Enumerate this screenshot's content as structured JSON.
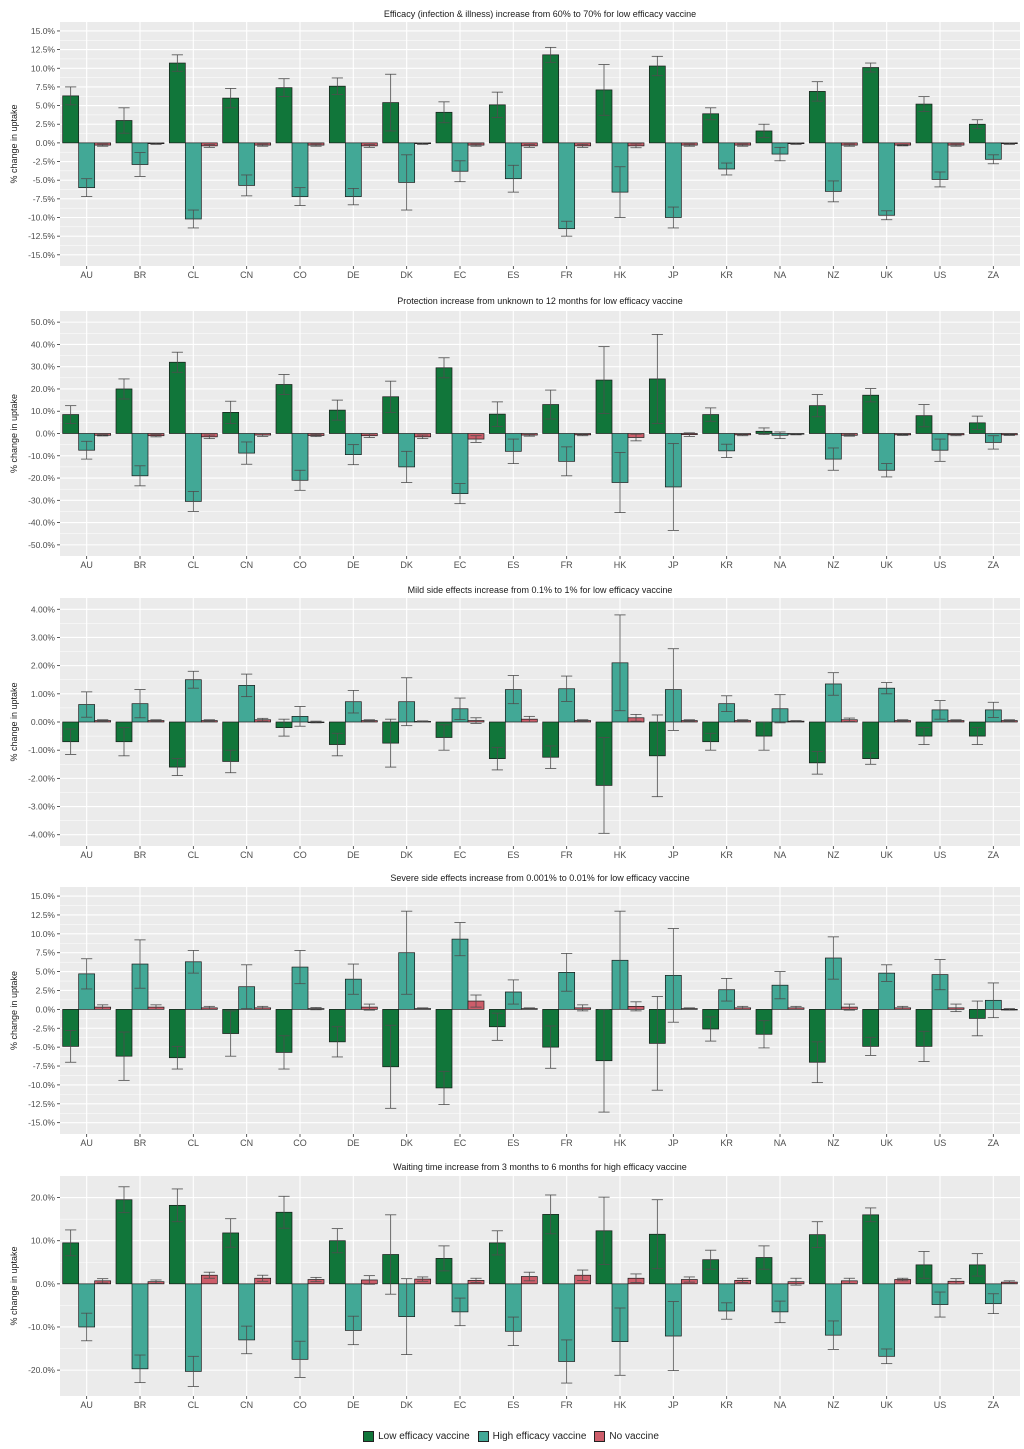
{
  "chart_data": [
    {
      "type": "bar",
      "title": "Efficacy (infection & illness) increase from 60% to 70% for low efficacy vaccine",
      "ylabel": "% change in uptake",
      "ylim": [
        -16.5,
        16.2
      ],
      "ticks": [
        -15,
        -12.5,
        -10,
        -7.5,
        -5,
        -2.5,
        0,
        2.5,
        5,
        7.5,
        10,
        12.5,
        15
      ],
      "tick_labels": [
        "-15.0%",
        "-12.5%",
        "-10.0%",
        "-7.5%",
        "-5.0%",
        "-2.5%",
        "0.0%",
        "2.5%",
        "5.0%",
        "7.5%",
        "10.0%",
        "12.5%",
        "15.0%"
      ],
      "categories": [
        "AU",
        "BR",
        "CL",
        "CN",
        "CO",
        "DE",
        "DK",
        "EC",
        "ES",
        "FR",
        "HK",
        "JP",
        "KR",
        "NA",
        "NZ",
        "UK",
        "US",
        "ZA"
      ],
      "series": [
        {
          "name": "Low efficacy vaccine",
          "values": [
            6.3,
            3.0,
            10.7,
            6.0,
            7.4,
            7.6,
            5.4,
            4.1,
            5.1,
            11.8,
            7.1,
            10.3,
            3.9,
            1.6,
            6.9,
            10.1,
            5.2,
            2.5
          ],
          "err": [
            1.2,
            1.7,
            1.1,
            1.3,
            1.2,
            1.1,
            3.8,
            1.4,
            1.7,
            1.0,
            3.4,
            1.3,
            0.8,
            0.9,
            1.3,
            0.6,
            1.0,
            0.6
          ]
        },
        {
          "name": "High efficacy vaccine",
          "values": [
            -6.0,
            -2.9,
            -10.2,
            -5.7,
            -7.2,
            -7.2,
            -5.3,
            -3.8,
            -4.8,
            -11.5,
            -6.6,
            -10.0,
            -3.5,
            -1.5,
            -6.5,
            -9.7,
            -4.9,
            -2.2
          ],
          "err": [
            1.2,
            1.6,
            1.2,
            1.4,
            1.2,
            1.1,
            3.7,
            1.4,
            1.8,
            1.0,
            3.4,
            1.4,
            0.8,
            0.9,
            1.4,
            0.6,
            1.0,
            0.6
          ]
        },
        {
          "name": "No vaccine",
          "values": [
            -0.3,
            -0.1,
            -0.4,
            -0.3,
            -0.3,
            -0.4,
            -0.1,
            -0.3,
            -0.4,
            -0.4,
            -0.4,
            -0.3,
            -0.3,
            -0.1,
            -0.3,
            -0.3,
            -0.3,
            -0.1
          ],
          "err": [
            0.15,
            0.1,
            0.2,
            0.15,
            0.15,
            0.2,
            0.1,
            0.15,
            0.2,
            0.2,
            0.25,
            0.15,
            0.15,
            0.1,
            0.15,
            0.1,
            0.15,
            0.1
          ]
        }
      ]
    },
    {
      "type": "bar",
      "title": "Protection increase from unknown to 12 months for low efficacy vaccine",
      "ylabel": "% change in uptake",
      "ylim": [
        -55,
        55
      ],
      "ticks": [
        -50,
        -40,
        -30,
        -20,
        -10,
        0,
        10,
        20,
        30,
        40,
        50
      ],
      "tick_labels": [
        "-50.0%",
        "-40.0%",
        "-30.0%",
        "-20.0%",
        "-10.0%",
        "0.0%",
        "10.0%",
        "20.0%",
        "30.0%",
        "40.0%",
        "50.0%"
      ],
      "categories": [
        "AU",
        "BR",
        "CL",
        "CN",
        "CO",
        "DE",
        "DK",
        "EC",
        "ES",
        "FR",
        "HK",
        "JP",
        "KR",
        "NA",
        "NZ",
        "UK",
        "US",
        "ZA"
      ],
      "series": [
        {
          "name": "Low efficacy vaccine",
          "values": [
            8.5,
            20.0,
            32.0,
            9.5,
            22.0,
            10.5,
            16.5,
            29.5,
            8.7,
            13.0,
            24.0,
            24.5,
            8.5,
            1.0,
            12.5,
            17.2,
            8.0,
            4.8
          ],
          "err": [
            4.0,
            4.5,
            4.5,
            5.0,
            4.5,
            4.5,
            7.0,
            4.5,
            5.5,
            6.5,
            15.0,
            20.0,
            3.0,
            1.5,
            5.0,
            3.0,
            5.0,
            3.0
          ]
        },
        {
          "name": "High efficacy vaccine",
          "values": [
            -7.5,
            -19.0,
            -30.5,
            -8.8,
            -21.0,
            -9.5,
            -15.0,
            -27.0,
            -8.0,
            -12.5,
            -22.0,
            -24.0,
            -7.8,
            -0.8,
            -11.5,
            -16.5,
            -7.5,
            -4.0
          ],
          "err": [
            4.0,
            4.5,
            4.5,
            5.0,
            4.5,
            4.5,
            7.0,
            4.5,
            5.5,
            6.5,
            13.5,
            19.5,
            3.0,
            1.5,
            5.0,
            3.0,
            5.0,
            3.0
          ]
        },
        {
          "name": "No vaccine",
          "values": [
            -0.8,
            -1.0,
            -1.5,
            -0.7,
            -0.9,
            -1.0,
            -1.5,
            -2.5,
            -0.7,
            -0.6,
            -1.8,
            -0.5,
            -0.6,
            -0.3,
            -0.8,
            -0.6,
            -0.6,
            -0.6
          ],
          "err": [
            0.3,
            0.5,
            0.8,
            0.6,
            0.5,
            0.8,
            0.8,
            1.5,
            0.5,
            0.4,
            1.5,
            0.8,
            0.4,
            0.3,
            0.4,
            0.3,
            0.4,
            0.3
          ]
        }
      ]
    },
    {
      "type": "bar",
      "title": "Mild side effects increase from 0.1% to 1% for low efficacy vaccine",
      "ylabel": "% change in uptake",
      "ylim": [
        -4.4,
        4.4
      ],
      "ticks": [
        -4,
        -3,
        -2,
        -1,
        0,
        1,
        2,
        3,
        4
      ],
      "tick_labels": [
        "-4.00%",
        "-3.00%",
        "-2.00%",
        "-1.00%",
        "0.00%",
        "1.00%",
        "2.00%",
        "3.00%",
        "4.00%"
      ],
      "categories": [
        "AU",
        "BR",
        "CL",
        "CN",
        "CO",
        "DE",
        "DK",
        "EC",
        "ES",
        "FR",
        "HK",
        "JP",
        "KR",
        "NA",
        "NZ",
        "UK",
        "US",
        "ZA"
      ],
      "series": [
        {
          "name": "Low efficacy vaccine",
          "values": [
            -0.7,
            -0.7,
            -1.6,
            -1.4,
            -0.2,
            -0.8,
            -0.75,
            -0.55,
            -1.3,
            -1.25,
            -2.25,
            -1.2,
            -0.7,
            -0.5,
            -1.45,
            -1.3,
            -0.5,
            -0.5
          ],
          "err": [
            0.45,
            0.5,
            0.3,
            0.4,
            0.3,
            0.4,
            0.85,
            0.45,
            0.4,
            0.4,
            1.7,
            1.45,
            0.3,
            0.5,
            0.4,
            0.2,
            0.3,
            0.3
          ]
        },
        {
          "name": "High efficacy vaccine",
          "values": [
            0.62,
            0.65,
            1.5,
            1.3,
            0.2,
            0.72,
            0.72,
            0.47,
            1.15,
            1.18,
            2.1,
            1.15,
            0.65,
            0.47,
            1.35,
            1.2,
            0.43,
            0.43
          ],
          "err": [
            0.45,
            0.5,
            0.3,
            0.4,
            0.35,
            0.4,
            0.85,
            0.38,
            0.5,
            0.45,
            1.7,
            1.45,
            0.28,
            0.5,
            0.4,
            0.2,
            0.33,
            0.27
          ]
        },
        {
          "name": "No vaccine",
          "values": [
            0.05,
            0.05,
            0.05,
            0.08,
            0.0,
            0.05,
            0.02,
            0.05,
            0.1,
            0.05,
            0.15,
            0.05,
            0.05,
            0.03,
            0.08,
            0.05,
            0.05,
            0.05
          ],
          "err": [
            0.03,
            0.03,
            0.03,
            0.05,
            0.03,
            0.03,
            0.02,
            0.1,
            0.1,
            0.03,
            0.12,
            0.03,
            0.03,
            0.02,
            0.06,
            0.03,
            0.03,
            0.03
          ]
        }
      ]
    },
    {
      "type": "bar",
      "title": "Severe side effects increase from 0.001% to 0.01% for low efficacy vaccine",
      "ylabel": "% change in uptake",
      "ylim": [
        -16.5,
        16.2
      ],
      "ticks": [
        -15,
        -12.5,
        -10,
        -7.5,
        -5,
        -2.5,
        0,
        2.5,
        5,
        7.5,
        10,
        12.5,
        15
      ],
      "tick_labels": [
        "-15.0%",
        "-12.5%",
        "-10.0%",
        "-7.5%",
        "-5.0%",
        "-2.5%",
        "0.0%",
        "2.5%",
        "5.0%",
        "7.5%",
        "10.0%",
        "12.5%",
        "15.0%"
      ],
      "categories": [
        "AU",
        "BR",
        "CL",
        "CN",
        "CO",
        "DE",
        "DK",
        "EC",
        "ES",
        "FR",
        "HK",
        "JP",
        "KR",
        "NA",
        "NZ",
        "UK",
        "US",
        "ZA"
      ],
      "series": [
        {
          "name": "Low efficacy vaccine",
          "values": [
            -4.9,
            -6.2,
            -6.4,
            -3.2,
            -5.7,
            -4.3,
            -7.6,
            -10.4,
            -2.3,
            -5.0,
            -6.8,
            -4.5,
            -2.6,
            -3.3,
            -7.0,
            -4.9,
            -4.9,
            -1.2
          ],
          "err": [
            2.1,
            3.2,
            1.5,
            3.0,
            2.2,
            2.0,
            5.5,
            2.2,
            1.8,
            2.8,
            6.8,
            6.2,
            1.6,
            1.8,
            2.7,
            1.2,
            2.0,
            2.3
          ]
        },
        {
          "name": "High efficacy vaccine",
          "values": [
            4.7,
            6.0,
            6.3,
            3.0,
            5.6,
            4.0,
            7.5,
            9.3,
            2.3,
            4.9,
            6.5,
            4.5,
            2.6,
            3.2,
            6.8,
            4.8,
            4.6,
            1.2
          ],
          "err": [
            2.0,
            3.2,
            1.5,
            2.9,
            2.2,
            2.0,
            5.5,
            2.2,
            1.6,
            2.5,
            6.5,
            6.2,
            1.5,
            1.8,
            2.8,
            1.1,
            2.0,
            2.3
          ]
        },
        {
          "name": "No vaccine",
          "values": [
            0.3,
            0.3,
            0.2,
            0.2,
            0.1,
            0.3,
            0.1,
            1.1,
            0.1,
            0.2,
            0.4,
            0.1,
            0.2,
            0.2,
            0.3,
            0.2,
            0.2,
            0.0
          ],
          "err": [
            0.3,
            0.3,
            0.2,
            0.2,
            0.15,
            0.4,
            0.1,
            0.8,
            0.1,
            0.4,
            0.6,
            0.1,
            0.2,
            0.2,
            0.4,
            0.2,
            0.5,
            0.1
          ]
        }
      ]
    },
    {
      "type": "bar",
      "title": "Waiting time increase from 3 months to 6 months for high efficacy vaccine",
      "ylabel": "% change in uptake",
      "ylim": [
        -26,
        25
      ],
      "ticks": [
        -20,
        -10,
        0,
        10,
        20
      ],
      "tick_labels": [
        "-20.0%",
        "-10.0%",
        "0.0%",
        "10.0%",
        "20.0%"
      ],
      "categories": [
        "AU",
        "BR",
        "CL",
        "CN",
        "CO",
        "DE",
        "DK",
        "EC",
        "ES",
        "FR",
        "HK",
        "JP",
        "KR",
        "NA",
        "NZ",
        "UK",
        "US",
        "ZA"
      ],
      "series": [
        {
          "name": "Low efficacy vaccine",
          "values": [
            9.5,
            19.5,
            18.2,
            11.8,
            16.6,
            10.0,
            6.8,
            5.9,
            9.5,
            16.1,
            12.3,
            11.5,
            5.6,
            6.1,
            11.4,
            16.0,
            4.4,
            4.4
          ],
          "err": [
            3.0,
            3.0,
            3.8,
            3.3,
            3.7,
            2.8,
            9.2,
            2.9,
            2.8,
            4.5,
            7.8,
            8.0,
            2.2,
            2.7,
            3.0,
            1.6,
            3.1,
            2.6
          ]
        },
        {
          "name": "High efficacy vaccine",
          "values": [
            -10.0,
            -19.7,
            -20.3,
            -13.0,
            -17.5,
            -10.8,
            -7.6,
            -6.5,
            -11.0,
            -18.0,
            -13.4,
            -12.1,
            -6.3,
            -6.5,
            -11.9,
            -16.8,
            -4.8,
            -4.6
          ],
          "err": [
            3.2,
            3.2,
            3.5,
            3.2,
            4.2,
            3.3,
            8.8,
            3.2,
            3.3,
            5.0,
            7.8,
            8.0,
            1.9,
            2.5,
            3.3,
            1.7,
            2.9,
            2.3
          ]
        },
        {
          "name": "No vaccine",
          "values": [
            0.7,
            0.5,
            2.0,
            1.3,
            1.0,
            0.9,
            1.1,
            0.8,
            1.7,
            2.0,
            1.3,
            1.0,
            0.8,
            0.5,
            0.7,
            1.0,
            0.6,
            0.4
          ],
          "err": [
            0.5,
            0.4,
            0.7,
            0.7,
            0.5,
            1.0,
            0.5,
            0.5,
            1.0,
            1.2,
            1.0,
            0.6,
            0.5,
            0.8,
            0.6,
            0.3,
            0.6,
            0.3
          ]
        }
      ]
    }
  ],
  "legend": {
    "items": [
      {
        "label": "Low efficacy vaccine",
        "color": "#11763A"
      },
      {
        "label": "High efficacy vaccine",
        "color": "#42A896"
      },
      {
        "label": "No vaccine",
        "color": "#CD5D6A"
      }
    ]
  },
  "colors": {
    "panel_background": "#EBEBEB",
    "grid": "#FFFFFF",
    "bar_outline": "#1A1A1A",
    "error_bar": "#4D4D4D"
  }
}
